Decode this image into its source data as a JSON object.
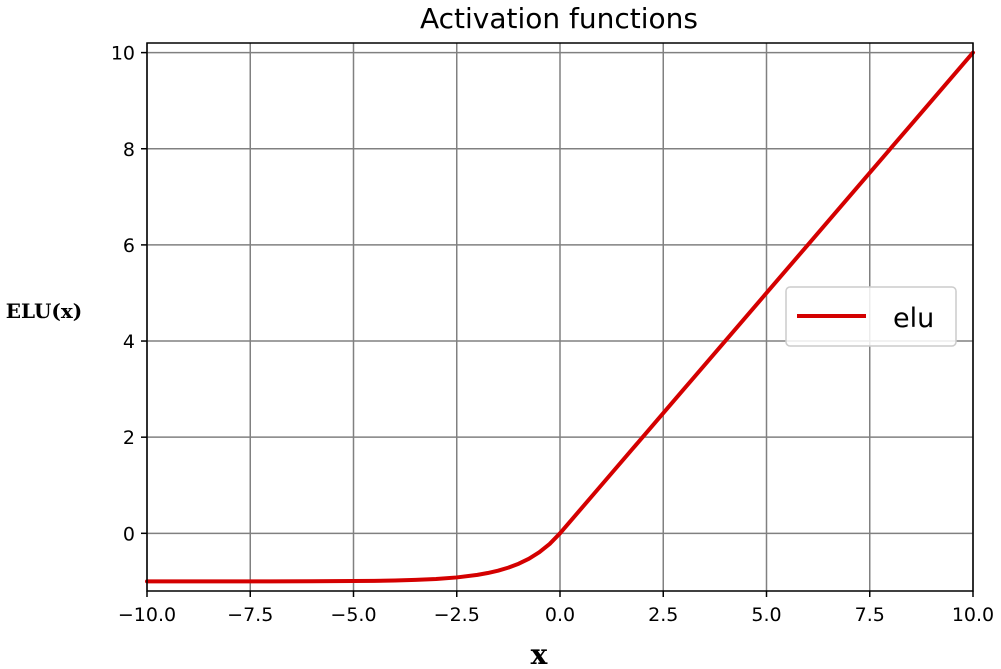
{
  "chart_data": {
    "type": "line",
    "title": "Activation functions",
    "xlabel": "x",
    "ylabel": "ELU(x)",
    "xlim": [
      -10,
      10
    ],
    "ylim": [
      -1.2,
      10.2
    ],
    "grid": true,
    "legend_position": "center-right",
    "x_ticks": [
      -10,
      -7.5,
      -5,
      -2.5,
      0,
      2.5,
      5,
      7.5,
      10
    ],
    "x_tick_labels": [
      "−10.0",
      "−7.5",
      "−5.0",
      "−2.5",
      "0.0",
      "2.5",
      "5.0",
      "7.5",
      "10.0"
    ],
    "y_ticks": [
      0,
      2,
      4,
      6,
      8,
      10
    ],
    "y_tick_labels": [
      "0",
      "2",
      "4",
      "6",
      "8",
      "10"
    ],
    "series": [
      {
        "name": "elu",
        "color": "#d40000",
        "x": [
          -10,
          -9,
          -8,
          -7,
          -6,
          -5,
          -4.5,
          -4,
          -3.5,
          -3,
          -2.5,
          -2,
          -1.75,
          -1.5,
          -1.25,
          -1,
          -0.75,
          -0.5,
          -0.25,
          0,
          1,
          2,
          3,
          4,
          5,
          6,
          7,
          8,
          9,
          10
        ],
        "y": [
          -0.99995,
          -0.99988,
          -0.99966,
          -0.99909,
          -0.99752,
          -0.99326,
          -0.98889,
          -0.98168,
          -0.9698,
          -0.95021,
          -0.91792,
          -0.86466,
          -0.82623,
          -0.77687,
          -0.7135,
          -0.63212,
          -0.52763,
          -0.39347,
          -0.2212,
          0,
          1,
          2,
          3,
          4,
          5,
          6,
          7,
          8,
          9,
          10
        ]
      }
    ]
  }
}
